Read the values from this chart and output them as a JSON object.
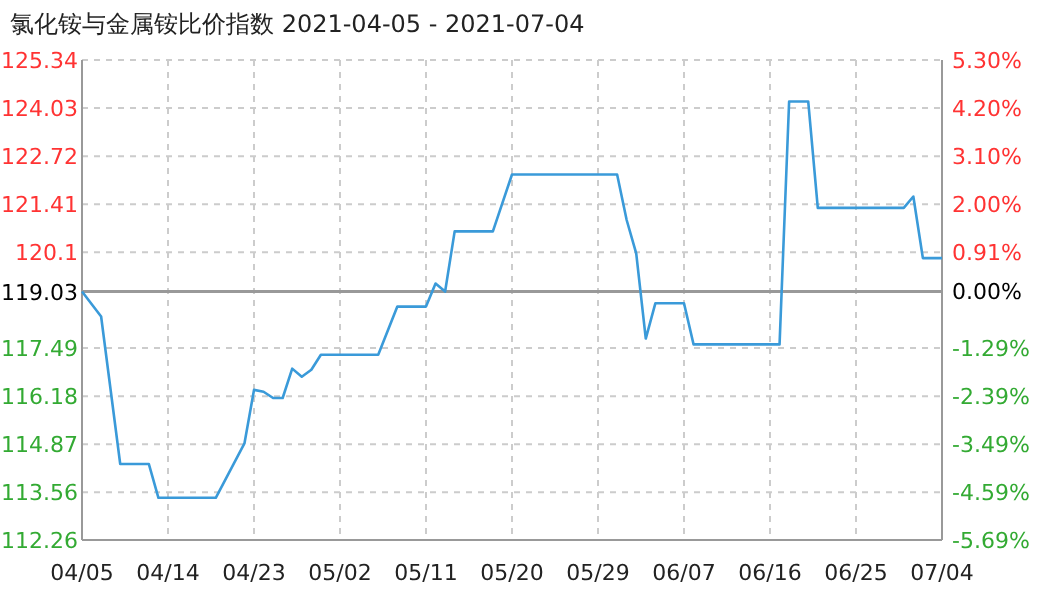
{
  "chart_data": {
    "type": "line",
    "title": "氯化铵与金属铵比价指数 2021-04-05 - 2021-07-04",
    "x": [
      "2021-04-05",
      "2021-04-07",
      "2021-04-09",
      "2021-04-12",
      "2021-04-13",
      "2021-04-19",
      "2021-04-22",
      "2021-04-23",
      "2021-04-24",
      "2021-04-25",
      "2021-04-26",
      "2021-04-27",
      "2021-04-28",
      "2021-04-29",
      "2021-04-30",
      "2021-05-06",
      "2021-05-08",
      "2021-05-11",
      "2021-05-12",
      "2021-05-13",
      "2021-05-14",
      "2021-05-18",
      "2021-05-20",
      "2021-05-31",
      "2021-06-01",
      "2021-06-02",
      "2021-06-03",
      "2021-06-04",
      "2021-06-07",
      "2021-06-08",
      "2021-06-17",
      "2021-06-18",
      "2021-06-20",
      "2021-06-21",
      "2021-06-30",
      "2021-07-01",
      "2021-07-02",
      "2021-07-04"
    ],
    "series": [
      {
        "color": "#3a9ad9",
        "values": [
          119.03,
          118.35,
          114.33,
          114.33,
          113.41,
          113.41,
          114.89,
          116.35,
          116.3,
          116.13,
          116.13,
          116.93,
          116.71,
          116.9,
          117.31,
          117.31,
          118.62,
          118.62,
          119.25,
          119.03,
          120.67,
          120.67,
          122.22,
          122.22,
          120.98,
          120.07,
          117.75,
          118.71,
          118.71,
          117.59,
          117.59,
          124.21,
          124.21,
          121.31,
          121.31,
          121.62,
          119.94,
          119.94
        ]
      }
    ],
    "xlim": [
      "2021-04-05",
      "2021-07-04"
    ],
    "xticks": [
      {
        "value": "2021-04-05",
        "label": "04/05"
      },
      {
        "value": "2021-04-14",
        "label": "04/14"
      },
      {
        "value": "2021-04-23",
        "label": "04/23"
      },
      {
        "value": "2021-05-02",
        "label": "05/02"
      },
      {
        "value": "2021-05-11",
        "label": "05/11"
      },
      {
        "value": "2021-05-20",
        "label": "05/20"
      },
      {
        "value": "2021-05-29",
        "label": "05/29"
      },
      {
        "value": "2021-06-07",
        "label": "06/07"
      },
      {
        "value": "2021-06-16",
        "label": "06/16"
      },
      {
        "value": "2021-06-25",
        "label": "06/25"
      },
      {
        "value": "2021-07-04",
        "label": "07/04"
      }
    ],
    "ylim": [
      112.26,
      125.34
    ],
    "yticks": [
      112.26,
      113.56,
      114.87,
      116.18,
      117.49,
      119.03,
      120.1,
      121.41,
      122.72,
      124.03,
      125.34
    ],
    "y2lim": [
      -5.69,
      5.3
    ],
    "y2ticks": [
      {
        "value": -5.69,
        "label": "-5.69%"
      },
      {
        "value": -4.59,
        "label": "-4.59%"
      },
      {
        "value": -3.49,
        "label": "-3.49%"
      },
      {
        "value": -2.39,
        "label": "-2.39%"
      },
      {
        "value": -1.29,
        "label": "-1.29%"
      },
      {
        "value": 0,
        "label": "0.00%"
      },
      {
        "value": 0.91,
        "label": "0.91%"
      },
      {
        "value": 2.0,
        "label": "2.00%"
      },
      {
        "value": 3.1,
        "label": "3.10%"
      },
      {
        "value": 4.2,
        "label": "4.20%"
      },
      {
        "value": 5.3,
        "label": "5.30%"
      }
    ],
    "ref_lines": [
      {
        "axis": "y",
        "value": 119.03,
        "color": "#999999"
      }
    ],
    "grid": true
  }
}
